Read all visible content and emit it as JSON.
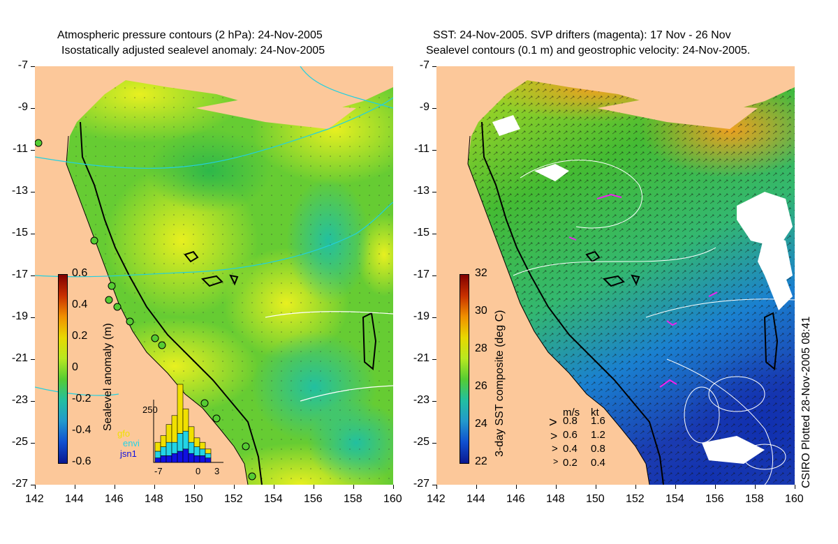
{
  "left_panel": {
    "title_line1": "Atmospheric pressure contours (2 hPa): 24-Nov-2005",
    "title_line2": "Isostatically adjusted sealevel anomaly: 24-Nov-2005",
    "colorbar_label": "Sealevel anomaly (m)",
    "colorbar_ticks": [
      "0.6",
      "0.4",
      "0.2",
      "0",
      "-0.2",
      "-0.4",
      "-0.6"
    ],
    "inset": {
      "ymax_label": "250",
      "series_labels": [
        "gfo",
        "envi",
        "jsn1"
      ],
      "series_colors": [
        "#f0e000",
        "#22d4e6",
        "#1010e0"
      ],
      "x_ticks": [
        "-7",
        "0",
        "3"
      ]
    }
  },
  "right_panel": {
    "title_line1": "SST: 24-Nov-2005. SVP drifters (magenta): 17 Nov - 26 Nov",
    "title_line2": "Sealevel contours (0.1 m) and geostrophic velocity: 24-Nov-2005.",
    "colorbar_label": "3-day SST composite (deg C)",
    "colorbar_ticks": [
      "32",
      "30",
      "28",
      "26",
      "24",
      "22"
    ],
    "velocity_legend": {
      "header_ms": "m/s",
      "header_kt": "kt",
      "rows": [
        {
          "ms": "0.8",
          "kt": "1.6"
        },
        {
          "ms": "0.6",
          "kt": "1.2"
        },
        {
          "ms": "0.4",
          "kt": "0.8"
        },
        {
          "ms": "0.2",
          "kt": "0.4"
        }
      ]
    },
    "credit": "CSIRO Plotted 28-Nov-2005 08:41"
  },
  "axes": {
    "lat_ticks": [
      "-7",
      "-9",
      "-11",
      "-13",
      "-15",
      "-17",
      "-19",
      "-21",
      "-23",
      "-25",
      "-27"
    ],
    "lon_ticks": [
      "142",
      "144",
      "146",
      "148",
      "150",
      "152",
      "154",
      "156",
      "158",
      "160"
    ]
  },
  "colors": {
    "land": "#fcc89a",
    "anomaly_green": "#55cc33",
    "anomaly_yellow": "#d8ee22",
    "anomaly_teal": "#33c39a",
    "sst_green": "#33b833",
    "sst_blue": "#2255cc",
    "drifters": "#ee22ee",
    "pressure_contour": "#22d0e0"
  }
}
